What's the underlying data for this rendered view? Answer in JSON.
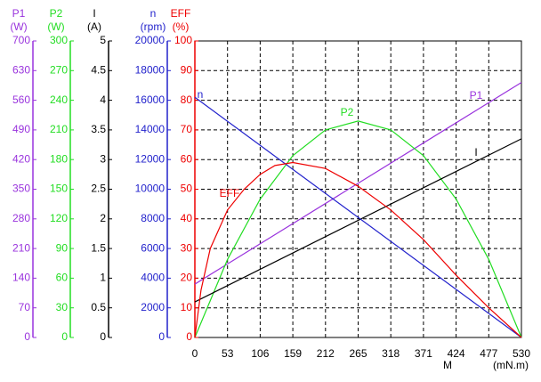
{
  "chart_data": {
    "type": "line",
    "xlabel": "M",
    "xunit": "(mN.m)",
    "xlim": [
      0,
      530
    ],
    "xticks": [
      0,
      53,
      106,
      159,
      212,
      265,
      318,
      371,
      424,
      477,
      530
    ],
    "grid": true,
    "axes": [
      {
        "name": "P1",
        "unit": "(W)",
        "color": "#9933dd",
        "lim": [
          0,
          700
        ],
        "ticks": [
          0,
          70,
          140,
          210,
          280,
          350,
          420,
          490,
          560,
          630,
          700
        ]
      },
      {
        "name": "P2",
        "unit": "(W)",
        "color": "#22dd22",
        "lim": [
          0,
          300
        ],
        "ticks": [
          0,
          30,
          60,
          90,
          120,
          150,
          180,
          210,
          240,
          270,
          300
        ]
      },
      {
        "name": "I",
        "unit": "(A)",
        "color": "#000000",
        "lim": [
          0,
          5
        ],
        "ticks": [
          0,
          0.5,
          1,
          1.5,
          2,
          2.5,
          3,
          3.5,
          4,
          4.5,
          5
        ]
      },
      {
        "name": "n",
        "unit": "(rpm)",
        "color": "#2222cc",
        "lim": [
          0,
          20000
        ],
        "ticks": [
          0,
          2000,
          4000,
          6000,
          8000,
          10000,
          12000,
          14000,
          16000,
          18000,
          20000
        ]
      },
      {
        "name": "EFF",
        "unit": "(%)",
        "color": "#ee0000",
        "lim": [
          0,
          100
        ],
        "ticks": [
          0,
          10,
          20,
          30,
          40,
          50,
          60,
          70,
          80,
          90,
          100
        ]
      }
    ],
    "series": [
      {
        "name": "P1",
        "axis": "P1",
        "color": "#9933dd",
        "x": [
          0,
          530
        ],
        "values": [
          126,
          602
        ]
      },
      {
        "name": "P2",
        "axis": "P2",
        "color": "#22dd22",
        "x": [
          0,
          53,
          106,
          159,
          212,
          265,
          318,
          371,
          424,
          477,
          530
        ],
        "values": [
          0,
          79,
          140,
          184,
          210,
          219,
          210,
          184,
          140,
          79,
          0
        ]
      },
      {
        "name": "I",
        "axis": "I",
        "color": "#000000",
        "x": [
          0,
          530
        ],
        "values": [
          0.6,
          3.35
        ]
      },
      {
        "name": "n",
        "axis": "n",
        "color": "#2222cc",
        "x": [
          0,
          530
        ],
        "values": [
          16200,
          0
        ]
      },
      {
        "name": "EFF",
        "axis": "EFF",
        "color": "#ee0000",
        "x": [
          0,
          10,
          25,
          53,
          80,
          106,
          130,
          159,
          212,
          265,
          318,
          371,
          424,
          477,
          530
        ],
        "values": [
          0,
          16,
          30,
          43,
          50,
          55,
          58,
          59,
          57,
          51,
          43,
          33,
          21,
          10,
          0
        ]
      }
    ]
  }
}
